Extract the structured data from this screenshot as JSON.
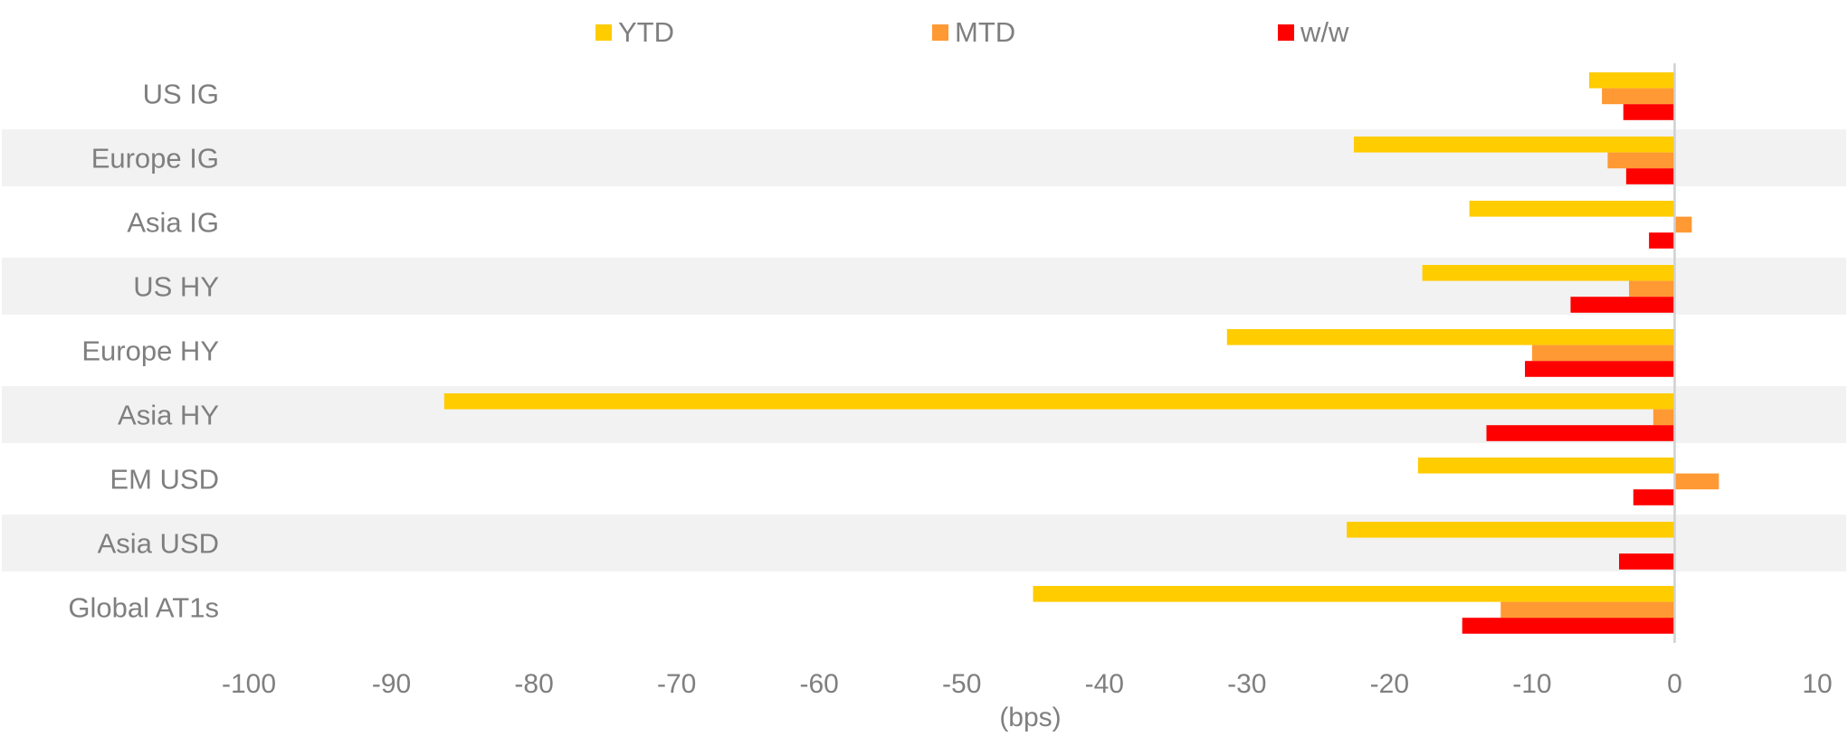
{
  "chart_data": {
    "type": "bar",
    "orientation": "horizontal",
    "title": "",
    "xlabel": "(bps)",
    "ylabel": "",
    "xlim": [
      -100,
      10
    ],
    "xticks": [
      -100,
      -90,
      -80,
      -70,
      -60,
      -50,
      -40,
      -30,
      -20,
      -10,
      0,
      10
    ],
    "legend_position": "top",
    "grid": false,
    "alternating_row_bands": true,
    "categories": [
      "US IG",
      "Europe IG",
      "Asia IG",
      "US HY",
      "Europe HY",
      "Asia HY",
      "EM USD",
      "Asia USD",
      "Global AT1s"
    ],
    "series": [
      {
        "name": "YTD",
        "color": "#FFCC00",
        "values": [
          -6,
          -22.5,
          -14.4,
          -17.7,
          -31.4,
          -86.3,
          -18,
          -23,
          -45
        ]
      },
      {
        "name": "MTD",
        "color": "#FF9933",
        "values": [
          -5.1,
          -4.7,
          1.2,
          -3.2,
          -10,
          -1.5,
          3.1,
          0,
          -12.2
        ]
      },
      {
        "name": "w/w",
        "color": "#FF0000",
        "values": [
          -3.6,
          -3.4,
          -1.8,
          -7.3,
          -10.5,
          -13.2,
          -2.9,
          -3.9,
          -14.9
        ]
      }
    ]
  }
}
